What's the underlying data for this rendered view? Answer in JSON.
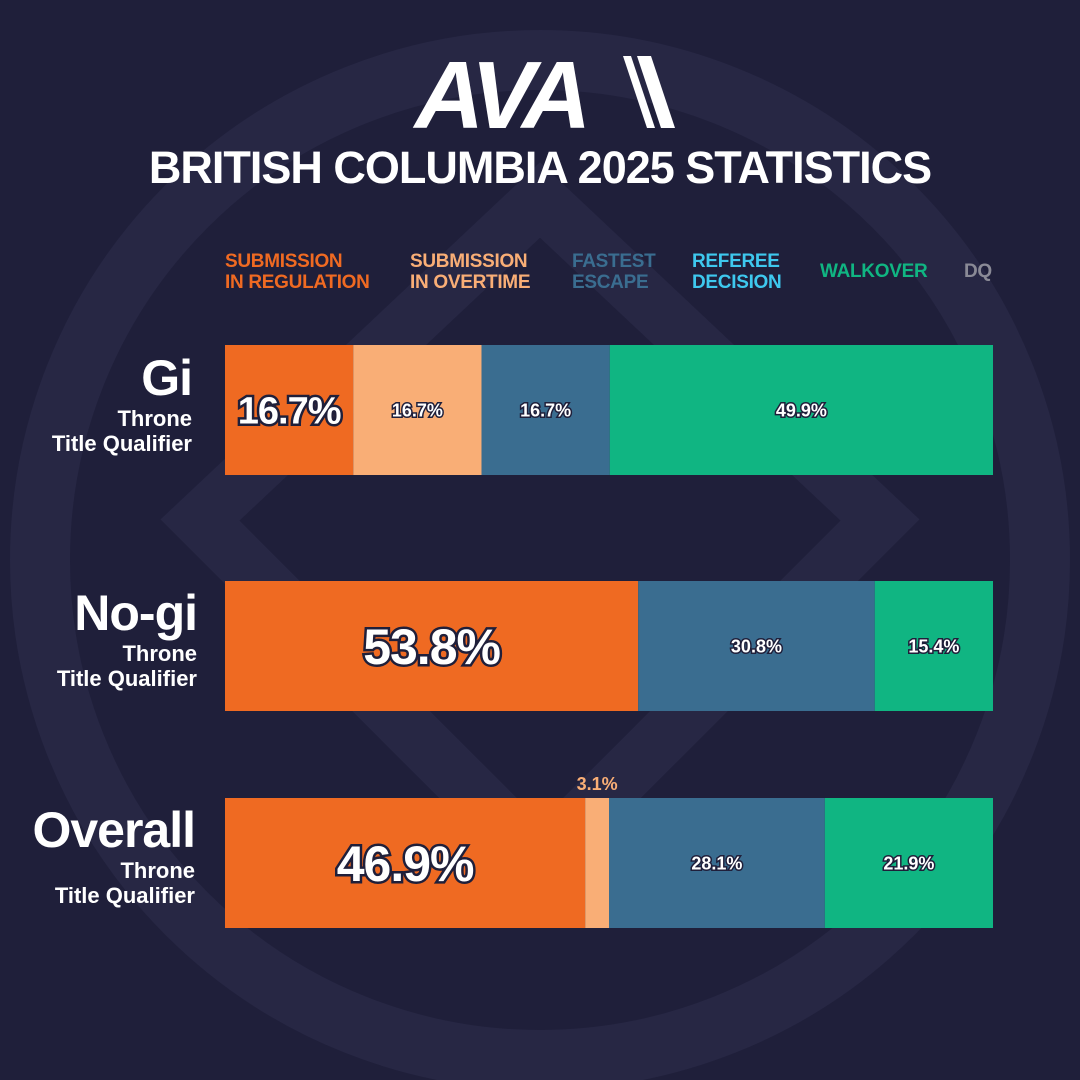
{
  "brand": "AVA",
  "title": "BRITISH COLUMBIA 2025 STATISTICS",
  "legend": [
    {
      "label": "SUBMISSION\nIN REGULATION",
      "color": "#ef6a22"
    },
    {
      "label": "SUBMISSION\nIN OVERTIME",
      "color": "#f9ae76"
    },
    {
      "label": "FASTEST\nESCAPE",
      "color": "#3a6d90"
    },
    {
      "label": "REFEREE\nDECISION",
      "color": "#3ec8ee"
    },
    {
      "label": "WALKOVER",
      "color": "#10b582"
    },
    {
      "label": "DQ",
      "color": "#8a8a96"
    }
  ],
  "rows": [
    {
      "name": "Gi",
      "sub": "Throne\nTitle Qualifier"
    },
    {
      "name": "No-gi",
      "sub": "Throne\nTitle Qualifier"
    },
    {
      "name": "Overall",
      "sub": "Throne\nTitle Qualifier"
    }
  ],
  "chart_data": {
    "type": "bar",
    "orientation": "horizontal",
    "stacked": true,
    "title": "BRITISH COLUMBIA 2025 STATISTICS",
    "categories": [
      "Gi",
      "No-gi",
      "Overall"
    ],
    "xlim": [
      0,
      100
    ],
    "legend_position": "top",
    "series": [
      {
        "name": "SUBMISSION IN REGULATION",
        "color": "#ef6a22",
        "values": [
          16.7,
          53.8,
          46.9
        ],
        "labels": [
          "16.7%",
          "53.8%",
          "46.9%"
        ]
      },
      {
        "name": "SUBMISSION IN OVERTIME",
        "color": "#f9ae76",
        "values": [
          16.7,
          0,
          3.1
        ],
        "labels": [
          "16.7%",
          "",
          "3.1%"
        ]
      },
      {
        "name": "FASTEST ESCAPE",
        "color": "#3a6d90",
        "values": [
          16.7,
          30.8,
          28.1
        ],
        "labels": [
          "16.7%",
          "30.8%",
          "28.1%"
        ]
      },
      {
        "name": "REFEREE DECISION",
        "color": "#3ec8ee",
        "values": [
          0,
          0,
          0
        ],
        "labels": [
          "",
          "",
          ""
        ]
      },
      {
        "name": "WALKOVER",
        "color": "#10b582",
        "values": [
          49.9,
          15.4,
          21.9
        ],
        "labels": [
          "49.9%",
          "15.4%",
          "21.9%"
        ]
      },
      {
        "name": "DQ",
        "color": "#8a8a96",
        "values": [
          0,
          0,
          0
        ],
        "labels": [
          "",
          "",
          ""
        ]
      }
    ]
  }
}
